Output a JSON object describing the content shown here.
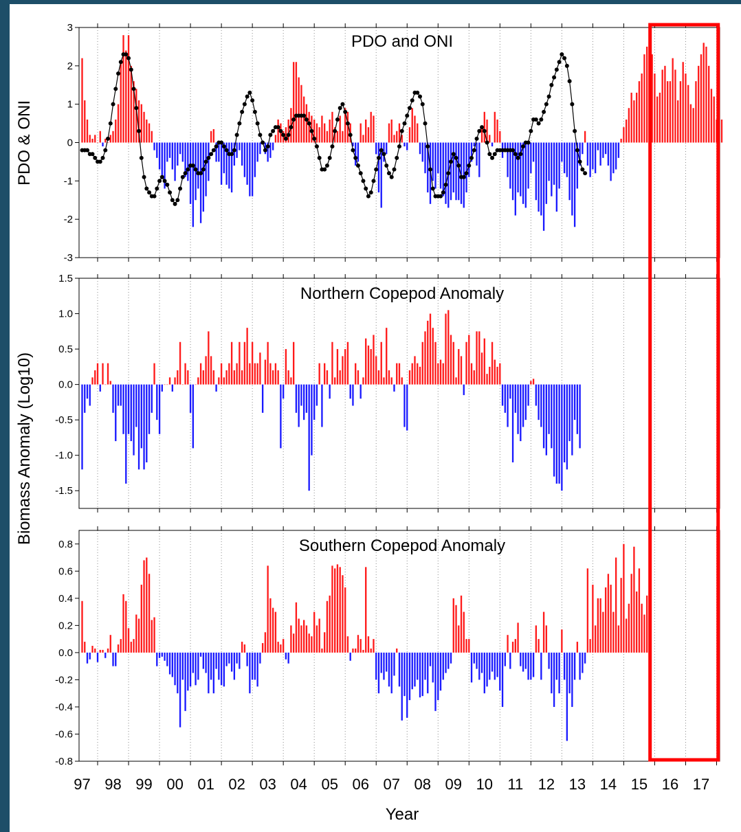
{
  "chart_data": {
    "type": "bar",
    "xlabel": "Year",
    "x_ticks": [
      "97",
      "98",
      "99",
      "00",
      "01",
      "02",
      "03",
      "04",
      "05",
      "06",
      "07",
      "08",
      "09",
      "10",
      "11",
      "12",
      "13",
      "14",
      "15",
      "16",
      "17"
    ],
    "x_tick_years": [
      1997,
      1998,
      1999,
      2000,
      2001,
      2002,
      2003,
      2004,
      2005,
      2006,
      2007,
      2008,
      2009,
      2010,
      2011,
      2012,
      2013,
      2014,
      2015,
      2016,
      2017
    ],
    "xlim": [
      1996.4,
      2017.1
    ],
    "highlight": {
      "color": "#ff0000",
      "x_range": [
        2014.85,
        2017.05
      ]
    },
    "colors": {
      "positive": "#ff1a1a",
      "negative": "#1a1aff",
      "line": "#000000"
    },
    "shared_ylabel": "Biomass Anomaly (Log10)",
    "panels": [
      {
        "title": "PDO and ONI",
        "ylabel": "PDO & ONI",
        "ylim": [
          -3,
          3
        ],
        "yticks": [
          3,
          2,
          1,
          0,
          -1,
          -2,
          -3
        ],
        "ytick_labels": [
          "3",
          "2",
          "1",
          "0",
          "-1",
          "-2",
          "-3"
        ],
        "series": [
          {
            "type": "bar",
            "start": 1996.5,
            "step": 0.08333,
            "values": [
              2.2,
              1.1,
              0.6,
              0.2,
              0.1,
              0.2,
              0.0,
              0.3,
              -0.1,
              0.1,
              0.0,
              0.2,
              0.3,
              0.6,
              1.0,
              2.1,
              2.8,
              2.4,
              2.8,
              2.0,
              1.6,
              1.4,
              1.1,
              1.0,
              0.8,
              0.6,
              0.5,
              0.3,
              -0.2,
              -0.4,
              -0.7,
              -0.9,
              -1.2,
              -0.5,
              -0.4,
              -0.7,
              -1.0,
              -0.6,
              -0.3,
              -0.5,
              -0.9,
              -1.0,
              -1.6,
              -2.2,
              -1.5,
              -1.2,
              -2.1,
              -1.8,
              -1.4,
              -1.0,
              0.3,
              0.35,
              -0.5,
              -0.5,
              -1.1,
              -0.8,
              -1.1,
              -1.2,
              -1.3,
              -0.6,
              -0.4,
              -0.2,
              -0.6,
              -0.9,
              -1.1,
              -1.4,
              -1.4,
              -0.9,
              -0.5,
              -0.3,
              0.0,
              -0.3,
              -0.5,
              -0.4,
              -0.2,
              0.2,
              0.6,
              0.5,
              0.3,
              0.4,
              0.6,
              0.9,
              2.1,
              2.1,
              1.7,
              1.5,
              1.2,
              1.0,
              0.8,
              0.7,
              0.6,
              0.5,
              0.4,
              0.7,
              0.5,
              0.3,
              0.6,
              0.8,
              0.4,
              0.3,
              0.7,
              0.3,
              0.9,
              0.8,
              0.5,
              -0.1,
              -0.6,
              -0.5,
              0.5,
              0.2,
              0.6,
              0.4,
              0.8,
              0.7,
              -0.3,
              -1.3,
              -1.7,
              -0.5,
              -0.3,
              0.5,
              0.6,
              0.2,
              0.3,
              0.5,
              0.2,
              -0.1,
              -0.2,
              0.4,
              0.9,
              0.7,
              0.5,
              -0.3,
              -0.5,
              -0.8,
              -1.3,
              -1.6,
              -1.0,
              -1.2,
              -0.8,
              -1.2,
              -1.4,
              -1.6,
              -1.7,
              -1.5,
              -1.3,
              -1.5,
              -1.5,
              -1.6,
              -1.7,
              -1.3,
              -0.9,
              -0.5,
              -0.1,
              -0.6,
              -0.9,
              0.4,
              0.8,
              0.6,
              0.2,
              -0.1,
              0.8,
              0.6,
              0.3,
              -0.4,
              -0.2,
              -0.9,
              -1.2,
              -1.5,
              -1.9,
              -1.3,
              -1.4,
              -1.6,
              -1.7,
              -1.2,
              -0.8,
              -0.5,
              -1.5,
              -1.8,
              -1.9,
              -2.3,
              -1.6,
              -1.0,
              -1.4,
              -1.1,
              -1.8,
              -1.2,
              -0.5,
              -0.8,
              -0.9,
              -1.5,
              -1.9,
              -2.2,
              -1.2,
              -0.6,
              -0.3,
              0.3,
              -0.6,
              -0.9,
              -0.7,
              -0.8,
              -0.2,
              -0.6,
              -0.4,
              -0.3,
              -0.6,
              -1.0,
              -0.8,
              -0.7,
              -0.4,
              0.1,
              0.4,
              0.6,
              0.9,
              1.3,
              1.1,
              1.3,
              1.6,
              1.8,
              2.3,
              2.5,
              2.4,
              2.3,
              1.8,
              1.2,
              1.3,
              1.9,
              2.0,
              1.6,
              1.6,
              2.2,
              1.9,
              1.1,
              1.6,
              2.1,
              1.8,
              1.5,
              1.0,
              0.9,
              1.6,
              2.0,
              2.3,
              2.6,
              2.5,
              2.0,
              1.4,
              1.2,
              0.6,
              0.5,
              0.6
            ]
          },
          {
            "type": "line",
            "start": 1996.5,
            "step": 0.08333,
            "values": [
              -0.2,
              -0.2,
              -0.2,
              -0.3,
              -0.3,
              -0.4,
              -0.5,
              -0.5,
              -0.4,
              -0.2,
              0.1,
              0.5,
              1.0,
              1.4,
              1.8,
              2.1,
              2.3,
              2.3,
              2.2,
              1.9,
              1.4,
              0.9,
              0.3,
              -0.4,
              -0.9,
              -1.2,
              -1.3,
              -1.4,
              -1.4,
              -1.2,
              -1.0,
              -0.9,
              -1.0,
              -1.1,
              -1.3,
              -1.5,
              -1.6,
              -1.5,
              -1.2,
              -0.9,
              -0.8,
              -0.7,
              -0.6,
              -0.6,
              -0.7,
              -0.8,
              -0.8,
              -0.7,
              -0.5,
              -0.4,
              -0.3,
              -0.2,
              -0.1,
              0.0,
              0.0,
              -0.1,
              -0.2,
              -0.3,
              -0.3,
              -0.2,
              0.2,
              0.5,
              0.8,
              1.0,
              1.2,
              1.3,
              1.1,
              0.8,
              0.5,
              0.2,
              0.0,
              -0.2,
              -0.1,
              0.2,
              0.3,
              0.4,
              0.4,
              0.3,
              0.2,
              0.1,
              0.2,
              0.4,
              0.6,
              0.7,
              0.7,
              0.7,
              0.7,
              0.6,
              0.5,
              0.3,
              0.1,
              -0.1,
              -0.4,
              -0.7,
              -0.7,
              -0.6,
              -0.4,
              -0.1,
              0.3,
              0.6,
              0.9,
              1.0,
              0.8,
              0.5,
              0.2,
              -0.2,
              -0.4,
              -0.6,
              -0.8,
              -1.0,
              -1.2,
              -1.4,
              -1.3,
              -1.0,
              -0.7,
              -0.4,
              -0.2,
              -0.3,
              -0.6,
              -0.8,
              -0.9,
              -0.7,
              -0.4,
              -0.1,
              0.3,
              0.5,
              0.7,
              0.9,
              1.1,
              1.3,
              1.3,
              1.2,
              1.0,
              0.5,
              -0.1,
              -0.7,
              -1.2,
              -1.4,
              -1.4,
              -1.4,
              -1.3,
              -1.1,
              -0.8,
              -0.5,
              -0.3,
              -0.4,
              -0.6,
              -0.9,
              -0.9,
              -0.8,
              -0.6,
              -0.4,
              -0.2,
              0.1,
              0.3,
              0.4,
              0.3,
              0.0,
              -0.3,
              -0.4,
              -0.3,
              -0.2,
              -0.2,
              -0.2,
              -0.2,
              -0.2,
              -0.2,
              -0.2,
              -0.3,
              -0.4,
              -0.3,
              -0.1,
              0.0,
              0.0,
              0.3,
              0.6,
              0.6,
              0.5,
              0.6,
              0.8,
              1.0,
              1.2,
              1.5,
              1.7,
              1.9,
              2.1,
              2.3,
              2.2,
              2.0,
              1.6,
              1.0,
              0.3,
              -0.2,
              -0.5,
              -0.7,
              -0.8
            ]
          }
        ]
      },
      {
        "title": "Northern Copepod Anomaly",
        "ylim": [
          -1.75,
          1.5
        ],
        "yticks": [
          1.5,
          1.0,
          0.5,
          0.0,
          -0.5,
          -1.0,
          -1.5
        ],
        "ytick_labels": [
          "1.5",
          "1.0",
          "0.5",
          "0.0",
          "-0.5",
          "-1.0",
          "-1.5"
        ],
        "series": [
          {
            "type": "bar",
            "start": 1996.5,
            "step": 0.08333,
            "values": [
              -1.2,
              -0.4,
              -0.2,
              -0.3,
              0.1,
              0.2,
              0.3,
              -0.1,
              0.3,
              0.0,
              0.3,
              0.05,
              -0.4,
              -0.8,
              -0.3,
              -0.3,
              -0.7,
              -1.4,
              -0.7,
              -0.8,
              -1.0,
              -0.6,
              -1.2,
              -0.9,
              -1.2,
              -1.1,
              -0.7,
              -0.4,
              0.3,
              -0.5,
              -0.7,
              -0.1,
              0.0,
              0.0,
              0.1,
              -0.1,
              0.1,
              0.2,
              0.6,
              0.0,
              0.3,
              0.2,
              -0.4,
              -0.9,
              0.0,
              0.1,
              0.3,
              0.2,
              0.4,
              0.75,
              0.4,
              0.2,
              -0.1,
              0.1,
              0.3,
              0.1,
              0.2,
              0.3,
              0.6,
              0.2,
              0.3,
              0.6,
              0.2,
              0.6,
              0.8,
              0.3,
              0.6,
              0.3,
              0.3,
              0.45,
              -0.4,
              0.35,
              0.6,
              0.3,
              0.2,
              0.3,
              0.2,
              -0.9,
              -0.2,
              0.5,
              0.2,
              0.1,
              0.6,
              -0.4,
              -0.6,
              -0.3,
              -0.5,
              -0.4,
              -1.5,
              -1.0,
              -0.5,
              -0.3,
              0.3,
              -0.6,
              0.3,
              0.2,
              -0.2,
              0.6,
              0.1,
              0.5,
              0.2,
              0.4,
              0.5,
              0.6,
              -0.2,
              -0.3,
              0.3,
              0.2,
              -0.2,
              0.1,
              0.65,
              0.55,
              0.5,
              0.7,
              0.4,
              0.2,
              0.6,
              0.1,
              0.8,
              0.2,
              0.1,
              -0.1,
              0.3,
              0.3,
              0.1,
              -0.6,
              -0.65,
              0.2,
              0.3,
              0.4,
              0.3,
              0.25,
              0.6,
              0.75,
              0.9,
              1.0,
              0.8,
              0.6,
              0.3,
              0.35,
              0.3,
              1.0,
              1.05,
              0.7,
              0.6,
              0.1,
              0.5,
              0.4,
              -0.15,
              0.6,
              0.7,
              0.3,
              0.2,
              0.75,
              0.75,
              0.45,
              0.65,
              0.15,
              0.25,
              0.6,
              0.35,
              0.25,
              0.3,
              -0.3,
              -0.4,
              -0.6,
              -0.2,
              -1.1,
              -0.4,
              -0.7,
              -0.8,
              -0.6,
              -0.5,
              -0.3,
              0.05,
              0.08,
              -0.3,
              -0.5,
              -0.6,
              -0.9,
              -1.0,
              -0.7,
              -0.9,
              -1.3,
              -1.4,
              -1.4,
              -1.5,
              -1.1,
              -1.2,
              -0.8,
              -1.0,
              -0.5,
              -0.7,
              -0.9
            ]
          }
        ]
      },
      {
        "title": "Southern Copepod Anomaly",
        "ylim": [
          -0.8,
          0.9
        ],
        "yticks": [
          0.8,
          0.6,
          0.4,
          0.2,
          0.0,
          -0.2,
          -0.4,
          -0.6,
          -0.8
        ],
        "ytick_labels": [
          "0.8",
          "0.6",
          "0.4",
          "0.2",
          "0.0",
          "-0.2",
          "-0.4",
          "-0.6",
          "-0.8"
        ],
        "series": [
          {
            "type": "bar",
            "start": 1996.5,
            "step": 0.08333,
            "values": [
              0.38,
              0.08,
              -0.08,
              -0.05,
              0.05,
              0.03,
              -0.07,
              0.02,
              0.02,
              -0.04,
              0.03,
              0.13,
              -0.1,
              -0.1,
              0.06,
              0.1,
              0.43,
              0.38,
              0.18,
              0.08,
              0.1,
              0.28,
              0.25,
              0.5,
              0.68,
              0.7,
              0.58,
              0.24,
              0.26,
              -0.1,
              -0.04,
              -0.03,
              -0.06,
              -0.1,
              -0.16,
              -0.18,
              -0.24,
              -0.3,
              -0.55,
              -0.2,
              -0.43,
              -0.28,
              -0.25,
              -0.15,
              -0.24,
              -0.2,
              -0.03,
              -0.12,
              -0.15,
              -0.3,
              -0.2,
              -0.3,
              -0.12,
              -0.2,
              -0.24,
              -0.25,
              -0.1,
              -0.08,
              -0.14,
              -0.2,
              -0.08,
              -0.12,
              0.08,
              0.06,
              -0.1,
              -0.3,
              -0.2,
              -0.2,
              -0.25,
              -0.08,
              0.07,
              0.15,
              0.64,
              0.4,
              0.33,
              0.3,
              0.08,
              0.06,
              0.1,
              -0.05,
              -0.08,
              0.2,
              0.14,
              0.37,
              0.25,
              0.2,
              0.24,
              0.2,
              0.14,
              0.12,
              0.3,
              0.2,
              0.25,
              0.03,
              0.15,
              0.38,
              0.42,
              0.64,
              0.62,
              0.65,
              0.63,
              0.57,
              0.48,
              0.12,
              -0.06,
              0.03,
              0.03,
              0.13,
              0.1,
              0.02,
              0.63,
              0.12,
              0.03,
              0.1,
              -0.2,
              -0.3,
              -0.15,
              -0.2,
              -0.14,
              -0.25,
              -0.3,
              -0.17,
              0.03,
              -0.25,
              -0.5,
              -0.32,
              -0.48,
              -0.35,
              -0.27,
              -0.25,
              -0.2,
              -0.33,
              -0.32,
              -0.2,
              -0.3,
              -0.1,
              -0.22,
              -0.43,
              -0.35,
              -0.28,
              -0.2,
              -0.15,
              -0.12,
              -0.08,
              0.4,
              0.35,
              0.2,
              0.42,
              0.3,
              0.1,
              0.1,
              -0.22,
              -0.08,
              -0.12,
              -0.2,
              -0.15,
              -0.3,
              -0.25,
              -0.2,
              -0.14,
              -0.2,
              -0.18,
              -0.28,
              -0.4,
              -0.1,
              0.13,
              -0.12,
              0.08,
              0.1,
              0.22,
              -0.1,
              -0.14,
              -0.12,
              -0.2,
              -0.2,
              -0.18,
              0.2,
              0.1,
              -0.2,
              0.3,
              0.2,
              -0.12,
              -0.3,
              -0.4,
              -0.2,
              -0.3,
              0.17,
              -0.2,
              -0.65,
              -0.3,
              -0.4,
              -0.2,
              0.08,
              -0.2,
              -0.15,
              -0.08,
              0.62,
              0.1,
              0.5,
              0.2,
              0.4,
              0.4,
              0.3,
              0.48,
              0.58,
              0.5,
              0.3,
              0.7,
              0.2,
              0.55,
              0.8,
              0.25,
              0.36,
              0.58,
              0.78,
              0.45,
              0.62,
              0.36,
              0.28,
              0.42,
              0.3
            ]
          }
        ]
      }
    ]
  }
}
